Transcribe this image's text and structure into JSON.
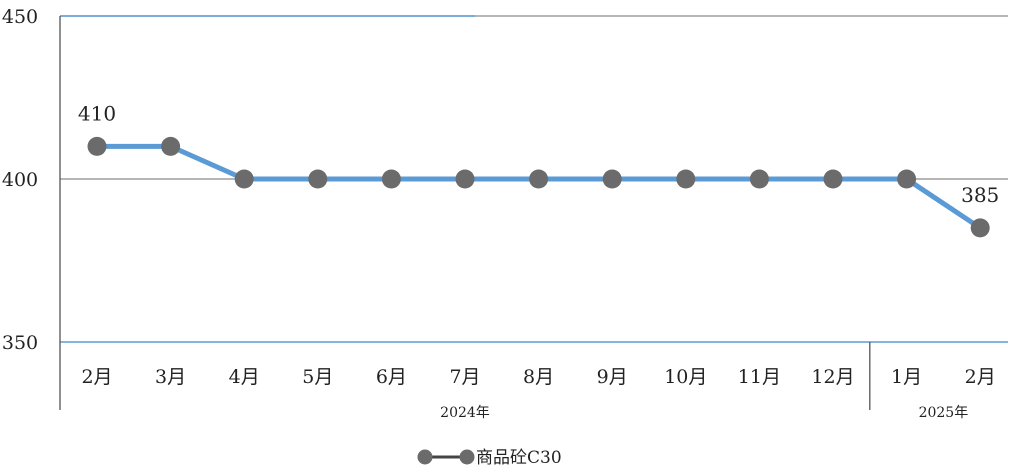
{
  "chart_data": {
    "type": "line",
    "categories": [
      "2月",
      "3月",
      "4月",
      "5月",
      "6月",
      "7月",
      "8月",
      "9月",
      "10月",
      "11月",
      "12月",
      "1月",
      "2月"
    ],
    "groups": [
      {
        "label": "2024年",
        "from": 0,
        "to": 10
      },
      {
        "label": "2025年",
        "from": 11,
        "to": 12
      }
    ],
    "series": [
      {
        "name": "商品砼C30",
        "values": [
          410,
          410,
          400,
          400,
          400,
          400,
          400,
          400,
          400,
          400,
          400,
          400,
          385
        ],
        "color": "#5b9bd5",
        "marker_color": "#6b6b6b"
      }
    ],
    "data_labels": [
      {
        "index": 0,
        "text": "410"
      },
      {
        "index": 12,
        "text": "385"
      }
    ],
    "yticks": [
      "350",
      "400",
      "450"
    ],
    "ylim": [
      350,
      450
    ],
    "grid": true,
    "legend_position": "bottom-center",
    "title": "",
    "xlabel": "",
    "ylabel": ""
  }
}
